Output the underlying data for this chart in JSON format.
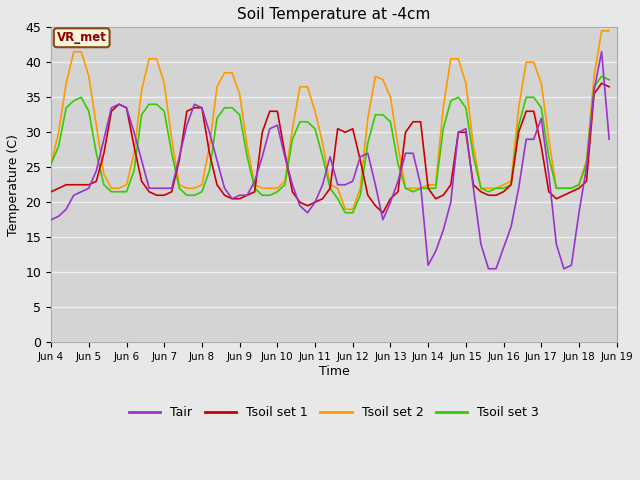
{
  "title": "Soil Temperature at -4cm",
  "xlabel": "Time",
  "ylabel": "Temperature (C)",
  "ylim": [
    0,
    45
  ],
  "xlim_days": [
    4,
    19
  ],
  "figure_bg": "#e8e8e8",
  "plot_bg": "#d4d4d4",
  "grid_color": "#f0f0f0",
  "label_box_text": "VR_met",
  "label_box_facecolor": "#f5f5dc",
  "label_box_edgecolor": "#8b4513",
  "label_box_textcolor": "#8b0000",
  "legend_labels": [
    "Tair",
    "Tsoil set 1",
    "Tsoil set 2",
    "Tsoil set 3"
  ],
  "line_colors": [
    "#9933cc",
    "#cc0000",
    "#ff9900",
    "#33cc00"
  ],
  "xtick_labels": [
    "Jun 4",
    "Jun 5",
    "Jun 6",
    "Jun 7",
    "Jun 8",
    "Jun 9",
    "Jun 10",
    "Jun 11",
    "Jun 12",
    "Jun 13",
    "Jun 14",
    "Jun 15",
    "Jun 16",
    "Jun 17",
    "Jun 18",
    "Jun 19"
  ],
  "xtick_positions": [
    4,
    5,
    6,
    7,
    8,
    9,
    10,
    11,
    12,
    13,
    14,
    15,
    16,
    17,
    18,
    19
  ],
  "ytick_positions": [
    0,
    5,
    10,
    15,
    20,
    25,
    30,
    35,
    40,
    45
  ],
  "tair_days": [
    4.0,
    4.2,
    4.4,
    4.6,
    4.8,
    5.0,
    5.2,
    5.4,
    5.6,
    5.8,
    6.0,
    6.2,
    6.4,
    6.6,
    6.8,
    7.0,
    7.2,
    7.4,
    7.6,
    7.8,
    8.0,
    8.2,
    8.4,
    8.6,
    8.8,
    9.0,
    9.2,
    9.4,
    9.6,
    9.8,
    10.0,
    10.2,
    10.4,
    10.6,
    10.8,
    11.0,
    11.2,
    11.4,
    11.6,
    11.8,
    12.0,
    12.2,
    12.4,
    12.6,
    12.8,
    13.0,
    13.2,
    13.4,
    13.6,
    13.8,
    14.0,
    14.2,
    14.4,
    14.6,
    14.8,
    15.0,
    15.2,
    15.4,
    15.6,
    15.8,
    16.0,
    16.2,
    16.4,
    16.6,
    16.8,
    17.0,
    17.2,
    17.4,
    17.6,
    17.8,
    18.0,
    18.2,
    18.4,
    18.6,
    18.8
  ],
  "tair_vals": [
    17.5,
    18.0,
    19.0,
    21.0,
    21.5,
    22.0,
    24.5,
    29.0,
    33.5,
    34.0,
    33.5,
    30.0,
    26.0,
    22.0,
    22.0,
    22.0,
    22.0,
    26.5,
    31.0,
    34.0,
    33.5,
    30.0,
    26.0,
    22.0,
    20.5,
    21.0,
    21.0,
    23.0,
    26.5,
    30.5,
    31.0,
    26.5,
    22.5,
    19.5,
    18.5,
    20.0,
    22.5,
    26.5,
    22.5,
    22.5,
    23.0,
    26.5,
    27.0,
    22.5,
    17.5,
    20.0,
    23.0,
    27.0,
    27.0,
    22.5,
    11.0,
    13.0,
    16.0,
    20.0,
    30.0,
    30.5,
    22.0,
    14.0,
    10.5,
    10.5,
    13.5,
    16.5,
    22.0,
    29.0,
    29.0,
    32.0,
    24.0,
    14.0,
    10.5,
    11.0,
    18.5,
    25.0,
    36.0,
    41.5,
    29.0
  ],
  "tsoil1_days": [
    4.0,
    4.2,
    4.4,
    4.6,
    4.8,
    5.0,
    5.2,
    5.4,
    5.6,
    5.8,
    6.0,
    6.2,
    6.4,
    6.6,
    6.8,
    7.0,
    7.2,
    7.4,
    7.6,
    7.8,
    8.0,
    8.2,
    8.4,
    8.6,
    8.8,
    9.0,
    9.2,
    9.4,
    9.6,
    9.8,
    10.0,
    10.2,
    10.4,
    10.6,
    10.8,
    11.0,
    11.2,
    11.4,
    11.6,
    11.8,
    12.0,
    12.2,
    12.4,
    12.6,
    12.8,
    13.0,
    13.2,
    13.4,
    13.6,
    13.8,
    14.0,
    14.2,
    14.4,
    14.6,
    14.8,
    15.0,
    15.2,
    15.4,
    15.6,
    15.8,
    16.0,
    16.2,
    16.4,
    16.6,
    16.8,
    17.0,
    17.2,
    17.4,
    17.6,
    17.8,
    18.0,
    18.2,
    18.4,
    18.6,
    18.8
  ],
  "tsoil1_vals": [
    21.5,
    22.0,
    22.5,
    22.5,
    22.5,
    22.5,
    23.0,
    27.0,
    33.0,
    34.0,
    33.5,
    28.0,
    23.0,
    21.5,
    21.0,
    21.0,
    21.5,
    26.0,
    33.0,
    33.5,
    33.5,
    27.0,
    22.5,
    21.0,
    20.5,
    20.5,
    21.0,
    21.5,
    30.0,
    33.0,
    33.0,
    27.0,
    21.5,
    20.0,
    19.5,
    20.0,
    20.5,
    22.0,
    30.5,
    30.0,
    30.5,
    26.0,
    21.0,
    19.5,
    18.5,
    20.5,
    21.5,
    30.0,
    31.5,
    31.5,
    22.0,
    20.5,
    21.0,
    22.5,
    30.0,
    30.0,
    22.5,
    21.5,
    21.0,
    21.0,
    21.5,
    22.5,
    30.0,
    33.0,
    33.0,
    28.0,
    21.5,
    20.5,
    21.0,
    21.5,
    22.0,
    23.0,
    35.5,
    37.0,
    36.5
  ],
  "tsoil2_days": [
    4.0,
    4.2,
    4.4,
    4.6,
    4.8,
    5.0,
    5.2,
    5.4,
    5.6,
    5.8,
    6.0,
    6.2,
    6.4,
    6.6,
    6.8,
    7.0,
    7.2,
    7.4,
    7.6,
    7.8,
    8.0,
    8.2,
    8.4,
    8.6,
    8.8,
    9.0,
    9.2,
    9.4,
    9.6,
    9.8,
    10.0,
    10.2,
    10.4,
    10.6,
    10.8,
    11.0,
    11.2,
    11.4,
    11.6,
    11.8,
    12.0,
    12.2,
    12.4,
    12.6,
    12.8,
    13.0,
    13.2,
    13.4,
    13.6,
    13.8,
    14.0,
    14.2,
    14.4,
    14.6,
    14.8,
    15.0,
    15.2,
    15.4,
    15.6,
    15.8,
    16.0,
    16.2,
    16.4,
    16.6,
    16.8,
    17.0,
    17.2,
    17.4,
    17.6,
    17.8,
    18.0,
    18.2,
    18.4,
    18.6,
    18.8
  ],
  "tsoil2_vals": [
    25.5,
    30.0,
    37.0,
    41.5,
    41.5,
    38.0,
    31.0,
    24.0,
    22.0,
    22.0,
    22.5,
    27.0,
    36.0,
    40.5,
    40.5,
    37.0,
    29.0,
    22.5,
    22.0,
    22.0,
    22.5,
    28.0,
    36.5,
    38.5,
    38.5,
    35.5,
    28.0,
    22.5,
    22.0,
    22.0,
    22.0,
    23.0,
    30.5,
    36.5,
    36.5,
    33.0,
    28.5,
    22.5,
    22.0,
    19.0,
    19.0,
    22.0,
    32.0,
    38.0,
    37.5,
    35.0,
    28.0,
    22.0,
    22.0,
    22.0,
    22.5,
    22.5,
    33.5,
    40.5,
    40.5,
    37.0,
    28.0,
    22.0,
    22.0,
    22.0,
    22.5,
    23.0,
    33.5,
    40.0,
    40.0,
    37.0,
    29.0,
    22.0,
    22.0,
    22.0,
    22.5,
    26.0,
    38.0,
    44.5,
    44.5
  ],
  "tsoil3_days": [
    4.0,
    4.2,
    4.4,
    4.6,
    4.8,
    5.0,
    5.2,
    5.4,
    5.6,
    5.8,
    6.0,
    6.2,
    6.4,
    6.6,
    6.8,
    7.0,
    7.2,
    7.4,
    7.6,
    7.8,
    8.0,
    8.2,
    8.4,
    8.6,
    8.8,
    9.0,
    9.2,
    9.4,
    9.6,
    9.8,
    10.0,
    10.2,
    10.4,
    10.6,
    10.8,
    11.0,
    11.2,
    11.4,
    11.6,
    11.8,
    12.0,
    12.2,
    12.4,
    12.6,
    12.8,
    13.0,
    13.2,
    13.4,
    13.6,
    13.8,
    14.0,
    14.2,
    14.4,
    14.6,
    14.8,
    15.0,
    15.2,
    15.4,
    15.6,
    15.8,
    16.0,
    16.2,
    16.4,
    16.6,
    16.8,
    17.0,
    17.2,
    17.4,
    17.6,
    17.8,
    18.0,
    18.2,
    18.4,
    18.6,
    18.8
  ],
  "tsoil3_vals": [
    25.5,
    28.0,
    33.5,
    34.5,
    35.0,
    33.0,
    27.0,
    22.5,
    21.5,
    21.5,
    21.5,
    24.5,
    32.5,
    34.0,
    34.0,
    33.0,
    27.0,
    22.0,
    21.0,
    21.0,
    21.5,
    24.5,
    32.0,
    33.5,
    33.5,
    32.5,
    26.5,
    22.0,
    21.0,
    21.0,
    21.5,
    22.5,
    29.0,
    31.5,
    31.5,
    30.5,
    26.5,
    22.0,
    20.5,
    18.5,
    18.5,
    21.0,
    28.5,
    32.5,
    32.5,
    31.5,
    25.5,
    22.0,
    21.5,
    22.0,
    22.0,
    22.0,
    30.5,
    34.5,
    35.0,
    33.5,
    26.5,
    22.0,
    21.5,
    22.0,
    22.0,
    22.5,
    31.0,
    35.0,
    35.0,
    33.5,
    26.5,
    22.0,
    22.0,
    22.0,
    22.5,
    25.5,
    36.5,
    38.0,
    37.5
  ]
}
